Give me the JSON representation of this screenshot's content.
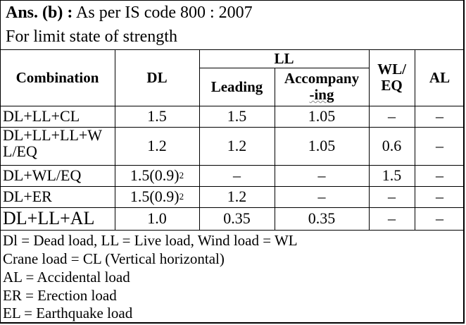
{
  "heading": {
    "answer_label": "Ans. (b) :",
    "answer_text": "As per IS code 800 : 2007",
    "subtitle": "For limit state of strength"
  },
  "table": {
    "headers": {
      "combination": "Combination",
      "dl": "DL",
      "ll": "LL",
      "leading": "Leading",
      "accompanying_1": "Accompany",
      "accompanying_2": "-ing",
      "wleq_1": "WL/",
      "wleq_2": "EQ",
      "al": "AL"
    },
    "rows": [
      {
        "combination": "DL+LL+CL",
        "dl": "1.5",
        "dl_sup": "",
        "leading": "1.5",
        "accompanying": "1.05",
        "wleq": "–",
        "al": "–"
      },
      {
        "combination_1": "DL+LL+LL+W",
        "combination_2": "L/EQ",
        "dl": "1.2",
        "dl_sup": "",
        "leading": "1.2",
        "accompanying": "1.05",
        "wleq": "0.6",
        "al": "–"
      },
      {
        "combination": "DL+WL/EQ",
        "dl": "1.5(0.9)",
        "dl_sup": "2",
        "leading": "–",
        "accompanying": "–",
        "wleq": "1.5",
        "al": "–"
      },
      {
        "combination": "DL+ER",
        "dl": "1.5(0.9)",
        "dl_sup": "2",
        "leading": "1.2",
        "accompanying": "–",
        "wleq": "–",
        "al": "–"
      },
      {
        "combination": "DL+LL+AL",
        "dl": "1.0",
        "dl_sup": "",
        "leading": "0.35",
        "accompanying": "0.35",
        "wleq": "–",
        "al": "–"
      }
    ]
  },
  "footer": {
    "line1": "Dl = Dead load, LL = Live load, Wind load = WL",
    "line2": "Crane load = CL (Vertical horizontal)",
    "line3": "AL = Accidental load",
    "line4": "ER = Erection load",
    "line5": "EL = Earthquake load"
  }
}
